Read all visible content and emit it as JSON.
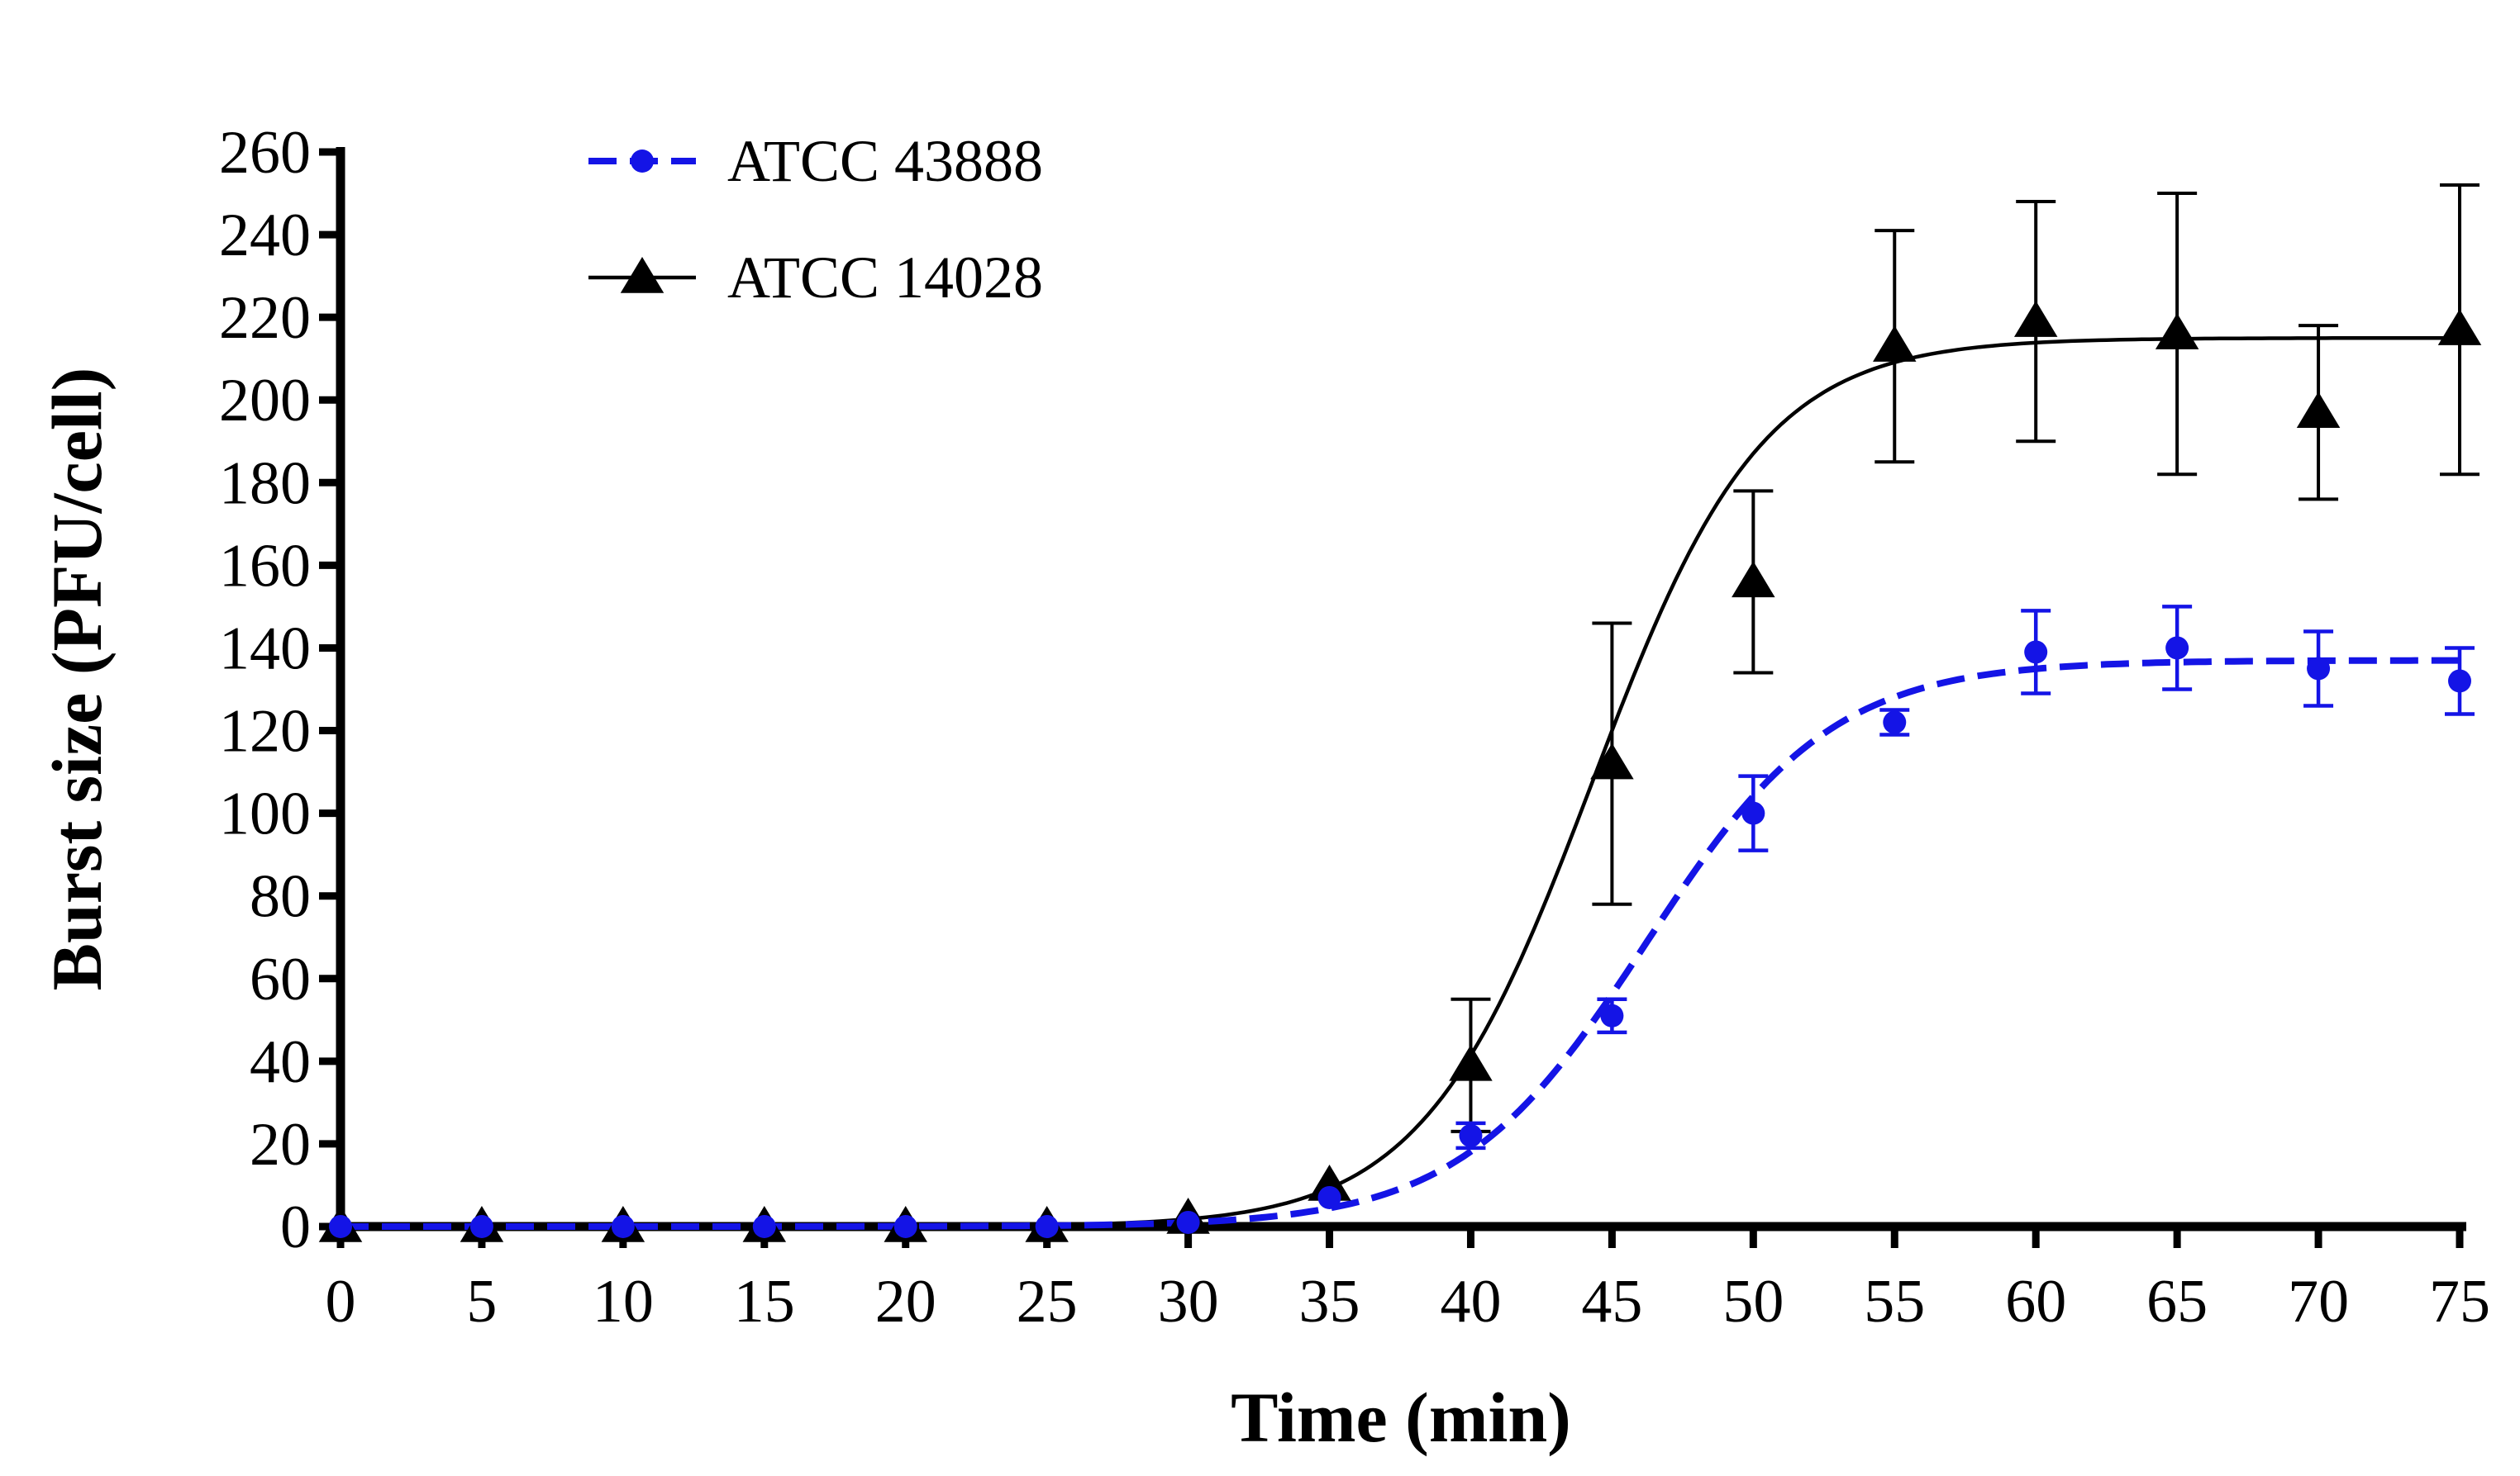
{
  "chart_data": {
    "type": "line",
    "title": "",
    "xlabel": "Time (min)",
    "ylabel": "Burst size (PFU/cell)",
    "xlim": [
      0,
      75
    ],
    "ylim": [
      0,
      260
    ],
    "xticks": [
      0,
      5,
      10,
      15,
      20,
      25,
      30,
      35,
      40,
      45,
      50,
      55,
      60,
      65,
      70,
      75
    ],
    "yticks": [
      0,
      20,
      40,
      60,
      80,
      100,
      120,
      140,
      160,
      180,
      200,
      220,
      240,
      260
    ],
    "grid": false,
    "legend_position": "top-left",
    "series": [
      {
        "name": "ATCC 43888",
        "color": "#1414e6",
        "marker": "circle",
        "line_style": "dashed",
        "x": [
          0,
          5,
          10,
          15,
          20,
          25,
          30,
          35,
          40,
          45,
          50,
          55,
          60,
          65,
          70,
          75
        ],
        "values": [
          0,
          0,
          0,
          0,
          0,
          0,
          1,
          7,
          22,
          51,
          100,
          122,
          139,
          140,
          135,
          132
        ],
        "errors": [
          0,
          0,
          0,
          0,
          0,
          0,
          0,
          0,
          3,
          4,
          9,
          3,
          10,
          10,
          9,
          8
        ],
        "fit": {
          "model": "sigmoid",
          "top": 137,
          "midpoint": 46.2,
          "slope": 3.3
        }
      },
      {
        "name": "ATCC 14028",
        "color": "#000000",
        "marker": "triangle",
        "line_style": "solid",
        "x": [
          0,
          5,
          10,
          15,
          20,
          25,
          30,
          35,
          40,
          45,
          50,
          55,
          60,
          65,
          70,
          75
        ],
        "values": [
          0,
          0,
          0,
          0,
          0,
          0,
          2,
          10,
          39,
          112,
          156,
          213,
          219,
          216,
          197,
          217
        ],
        "errors": [
          0,
          0,
          0,
          0,
          0,
          0,
          0,
          0,
          16,
          34,
          22,
          28,
          29,
          34,
          21,
          35
        ],
        "fit": {
          "model": "sigmoid",
          "top": 215,
          "midpoint": 44.3,
          "slope": 3.0
        }
      }
    ]
  }
}
